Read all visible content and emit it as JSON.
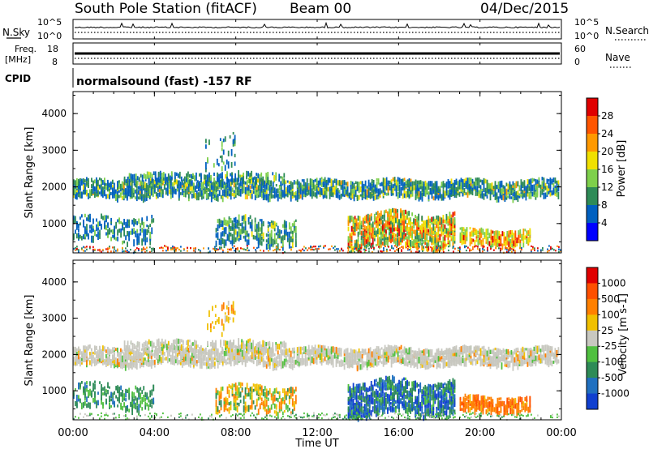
{
  "header": {
    "station": "South Pole Station (fitACF)",
    "beam": "Beam 00",
    "date": "04/Dec/2015"
  },
  "chart_data": [
    {
      "type": "line",
      "panel": "noise",
      "left_label": "N.Sky",
      "right_label": "N.Search",
      "left_ticks": [
        "10^5",
        "10^0"
      ],
      "right_ticks": [
        "10^5",
        "10^0"
      ]
    },
    {
      "type": "line",
      "panel": "frequency",
      "left_label_top": "Freq.",
      "left_label_bottom": "[MHz]",
      "right_label": "Nave",
      "left_ticks": [
        "18",
        "8"
      ],
      "right_ticks": [
        "60",
        "0"
      ]
    },
    {
      "type": "table",
      "panel": "cpid",
      "label": "CPID",
      "text": "normalsound (fast) -157 RF"
    },
    {
      "type": "heatmap",
      "panel": "power",
      "ylabel": "Slant Range [km]",
      "ylim": [
        200,
        4600
      ],
      "yticks": [
        1000,
        2000,
        3000,
        4000
      ],
      "colorbar_label": "Power [dB]",
      "colorbar_ticks": [
        "4",
        "8",
        "12",
        "16",
        "20",
        "24",
        "28"
      ],
      "colorbar_colors": [
        "#0000ff",
        "#0060c0",
        "#2e8b57",
        "#7ed04b",
        "#f0e000",
        "#ff9900",
        "#ff5500",
        "#e00000"
      ]
    },
    {
      "type": "heatmap",
      "panel": "velocity",
      "ylabel": "Slant Range [km]",
      "ylim": [
        200,
        4600
      ],
      "yticks": [
        1000,
        2000,
        3000,
        4000
      ],
      "colorbar_label": "Velocity [m s-1]",
      "colorbar_ticks": [
        "1000",
        "500",
        "100",
        "25",
        "-25",
        "-100",
        "-500",
        "-1000"
      ],
      "colorbar_colors": [
        "#1040d0",
        "#2070c0",
        "#2e8b57",
        "#50c040",
        "#c8c8c0",
        "#f0c000",
        "#ff8000",
        "#ff5000",
        "#e00000"
      ]
    }
  ],
  "xaxis": {
    "xlabel": "Time UT",
    "ticks": [
      "00:00",
      "04:00",
      "08:00",
      "12:00",
      "16:00",
      "20:00",
      "00:00"
    ]
  }
}
